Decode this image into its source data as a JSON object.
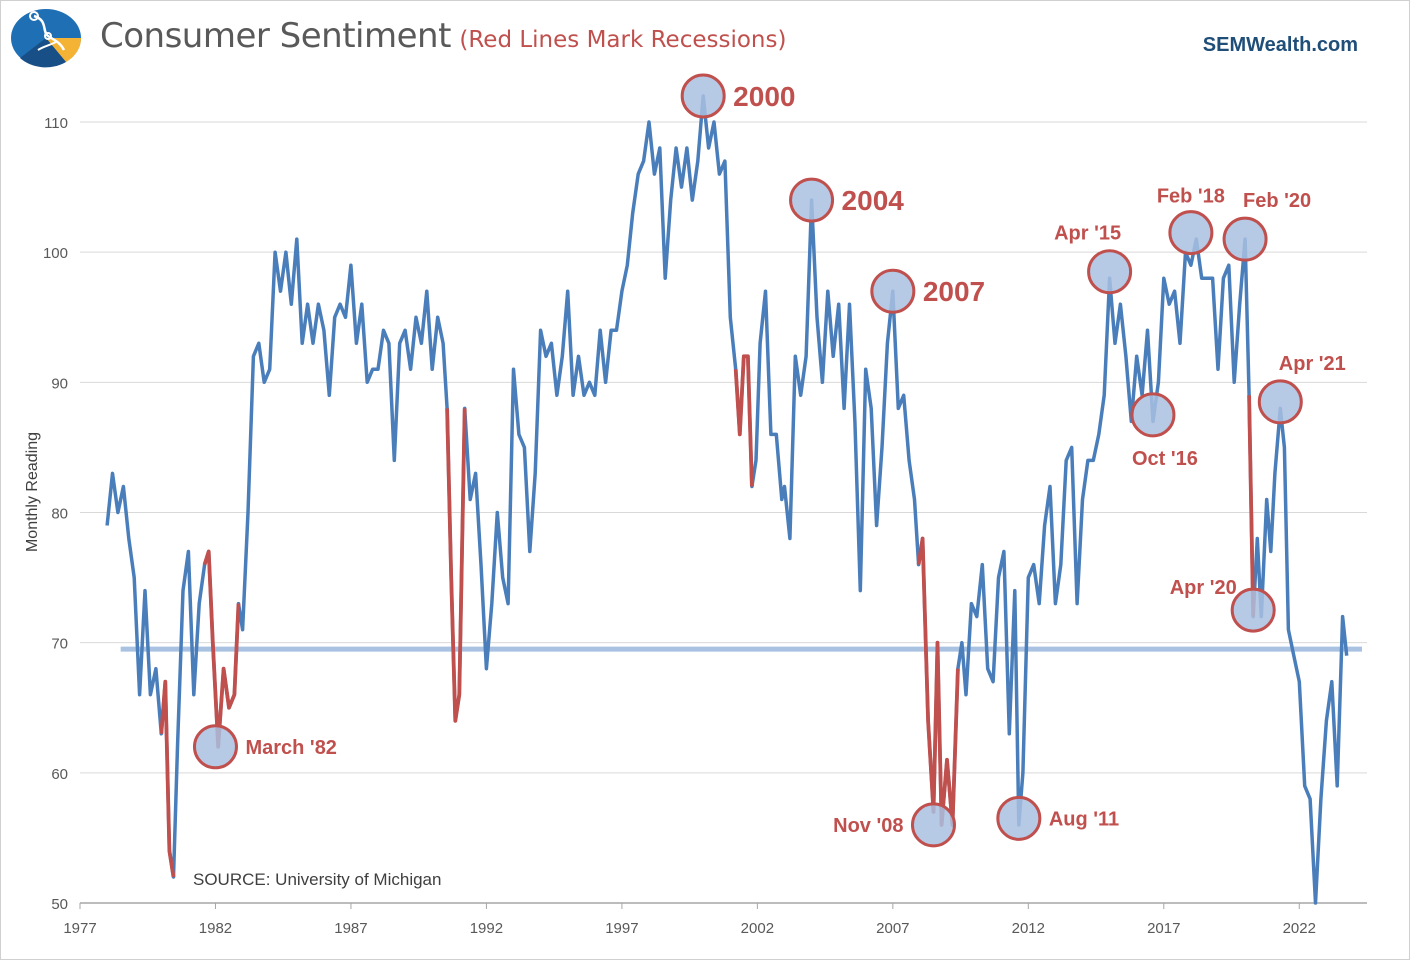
{
  "header": {
    "title": "Consumer Sentiment",
    "subtitle": "(Red Lines Mark Recessions)",
    "brand": "SEMWealth.com"
  },
  "colors": {
    "series": "#4a7ebb",
    "recession": "#c0504d",
    "average_line": "#a9c2e2",
    "marker_fill": "#a9bfe0",
    "grid": "#d9d9d9",
    "axis_text": "#595959"
  },
  "chart_data": {
    "type": "line",
    "title": "Consumer Sentiment",
    "subtitle": "(Red Lines Mark Recessions)",
    "ylabel": "Monthly Reading",
    "xlabel": "",
    "source": "SOURCE: University of Michigan",
    "ylim": [
      50,
      110
    ],
    "xlim": [
      1977,
      2024.5
    ],
    "yticks": [
      50,
      60,
      70,
      80,
      90,
      100,
      110
    ],
    "xticks": [
      "1977",
      "1982",
      "1987",
      "1992",
      "1997",
      "2002",
      "2007",
      "2012",
      "2017",
      "2022"
    ],
    "grid": "horizontal",
    "average": 69.5,
    "recessions": [
      [
        1980.0,
        1980.5
      ],
      [
        1981.5,
        1982.9
      ],
      [
        1990.5,
        1991.2
      ],
      [
        2001.2,
        2001.9
      ],
      [
        2007.9,
        2009.5
      ],
      [
        2020.1,
        2020.4
      ]
    ],
    "series": [
      {
        "values": [
          [
            1978.0,
            79
          ],
          [
            1978.2,
            83
          ],
          [
            1978.4,
            80
          ],
          [
            1978.6,
            82
          ],
          [
            1978.8,
            78
          ],
          [
            1979.0,
            75
          ],
          [
            1979.2,
            66
          ],
          [
            1979.4,
            74
          ],
          [
            1979.6,
            66
          ],
          [
            1979.8,
            68
          ],
          [
            1980.0,
            63
          ],
          [
            1980.15,
            67
          ],
          [
            1980.3,
            54
          ],
          [
            1980.45,
            52
          ],
          [
            1980.6,
            62
          ],
          [
            1980.8,
            74
          ],
          [
            1981.0,
            77
          ],
          [
            1981.2,
            66
          ],
          [
            1981.4,
            73
          ],
          [
            1981.6,
            76
          ],
          [
            1981.75,
            77
          ],
          [
            1981.9,
            70
          ],
          [
            1982.1,
            62
          ],
          [
            1982.3,
            68
          ],
          [
            1982.5,
            65
          ],
          [
            1982.7,
            66
          ],
          [
            1982.85,
            73
          ],
          [
            1983.0,
            71
          ],
          [
            1983.2,
            80
          ],
          [
            1983.4,
            92
          ],
          [
            1983.6,
            93
          ],
          [
            1983.8,
            90
          ],
          [
            1984.0,
            91
          ],
          [
            1984.2,
            100
          ],
          [
            1984.4,
            97
          ],
          [
            1984.6,
            100
          ],
          [
            1984.8,
            96
          ],
          [
            1985.0,
            101
          ],
          [
            1985.2,
            93
          ],
          [
            1985.4,
            96
          ],
          [
            1985.6,
            93
          ],
          [
            1985.8,
            96
          ],
          [
            1986.0,
            94
          ],
          [
            1986.2,
            89
          ],
          [
            1986.4,
            95
          ],
          [
            1986.6,
            96
          ],
          [
            1986.8,
            95
          ],
          [
            1987.0,
            99
          ],
          [
            1987.2,
            93
          ],
          [
            1987.4,
            96
          ],
          [
            1987.6,
            90
          ],
          [
            1987.8,
            91
          ],
          [
            1988.0,
            91
          ],
          [
            1988.2,
            94
          ],
          [
            1988.4,
            93
          ],
          [
            1988.6,
            84
          ],
          [
            1988.8,
            93
          ],
          [
            1989.0,
            94
          ],
          [
            1989.2,
            91
          ],
          [
            1989.4,
            95
          ],
          [
            1989.6,
            93
          ],
          [
            1989.8,
            97
          ],
          [
            1990.0,
            91
          ],
          [
            1990.2,
            95
          ],
          [
            1990.4,
            93
          ],
          [
            1990.55,
            88
          ],
          [
            1990.7,
            75
          ],
          [
            1990.85,
            64
          ],
          [
            1991.0,
            66
          ],
          [
            1991.2,
            88
          ],
          [
            1991.4,
            81
          ],
          [
            1991.6,
            83
          ],
          [
            1991.8,
            76
          ],
          [
            1992.0,
            68
          ],
          [
            1992.2,
            73
          ],
          [
            1992.4,
            80
          ],
          [
            1992.6,
            75
          ],
          [
            1992.8,
            73
          ],
          [
            1993.0,
            91
          ],
          [
            1993.2,
            86
          ],
          [
            1993.4,
            85
          ],
          [
            1993.6,
            77
          ],
          [
            1993.8,
            83
          ],
          [
            1994.0,
            94
          ],
          [
            1994.2,
            92
          ],
          [
            1994.4,
            93
          ],
          [
            1994.6,
            89
          ],
          [
            1994.8,
            92
          ],
          [
            1995.0,
            97
          ],
          [
            1995.2,
            89
          ],
          [
            1995.4,
            92
          ],
          [
            1995.6,
            89
          ],
          [
            1995.8,
            90
          ],
          [
            1996.0,
            89
          ],
          [
            1996.2,
            94
          ],
          [
            1996.4,
            90
          ],
          [
            1996.6,
            94
          ],
          [
            1996.8,
            94
          ],
          [
            1997.0,
            97
          ],
          [
            1997.2,
            99
          ],
          [
            1997.4,
            103
          ],
          [
            1997.6,
            106
          ],
          [
            1997.8,
            107
          ],
          [
            1998.0,
            110
          ],
          [
            1998.2,
            106
          ],
          [
            1998.4,
            108
          ],
          [
            1998.6,
            98
          ],
          [
            1998.8,
            104
          ],
          [
            1999.0,
            108
          ],
          [
            1999.2,
            105
          ],
          [
            1999.4,
            108
          ],
          [
            1999.6,
            104
          ],
          [
            1999.8,
            107
          ],
          [
            2000.0,
            112
          ],
          [
            2000.2,
            108
          ],
          [
            2000.4,
            110
          ],
          [
            2000.6,
            106
          ],
          [
            2000.8,
            107
          ],
          [
            2001.0,
            95
          ],
          [
            2001.2,
            91
          ],
          [
            2001.35,
            86
          ],
          [
            2001.5,
            92
          ],
          [
            2001.65,
            92
          ],
          [
            2001.8,
            82
          ],
          [
            2001.95,
            84
          ],
          [
            2002.1,
            93
          ],
          [
            2002.3,
            97
          ],
          [
            2002.5,
            86
          ],
          [
            2002.7,
            86
          ],
          [
            2002.9,
            81
          ],
          [
            2003.0,
            82
          ],
          [
            2003.2,
            78
          ],
          [
            2003.4,
            92
          ],
          [
            2003.6,
            89
          ],
          [
            2003.8,
            92
          ],
          [
            2004.0,
            104
          ],
          [
            2004.2,
            95
          ],
          [
            2004.4,
            90
          ],
          [
            2004.6,
            97
          ],
          [
            2004.8,
            92
          ],
          [
            2005.0,
            96
          ],
          [
            2005.2,
            88
          ],
          [
            2005.4,
            96
          ],
          [
            2005.6,
            87
          ],
          [
            2005.8,
            74
          ],
          [
            2006.0,
            91
          ],
          [
            2006.2,
            88
          ],
          [
            2006.4,
            79
          ],
          [
            2006.6,
            85
          ],
          [
            2006.8,
            93
          ],
          [
            2007.0,
            97
          ],
          [
            2007.2,
            88
          ],
          [
            2007.4,
            89
          ],
          [
            2007.6,
            84
          ],
          [
            2007.8,
            81
          ],
          [
            2007.95,
            76
          ],
          [
            2008.1,
            78
          ],
          [
            2008.3,
            64
          ],
          [
            2008.5,
            57
          ],
          [
            2008.65,
            70
          ],
          [
            2008.8,
            56
          ],
          [
            2009.0,
            61
          ],
          [
            2009.2,
            56
          ],
          [
            2009.4,
            68
          ],
          [
            2009.55,
            70
          ],
          [
            2009.7,
            66
          ],
          [
            2009.9,
            73
          ],
          [
            2010.1,
            72
          ],
          [
            2010.3,
            76
          ],
          [
            2010.5,
            68
          ],
          [
            2010.7,
            67
          ],
          [
            2010.9,
            75
          ],
          [
            2011.1,
            77
          ],
          [
            2011.3,
            63
          ],
          [
            2011.5,
            74
          ],
          [
            2011.65,
            56
          ],
          [
            2011.8,
            60
          ],
          [
            2012.0,
            75
          ],
          [
            2012.2,
            76
          ],
          [
            2012.4,
            73
          ],
          [
            2012.6,
            79
          ],
          [
            2012.8,
            82
          ],
          [
            2013.0,
            73
          ],
          [
            2013.2,
            76
          ],
          [
            2013.4,
            84
          ],
          [
            2013.6,
            85
          ],
          [
            2013.8,
            73
          ],
          [
            2014.0,
            81
          ],
          [
            2014.2,
            84
          ],
          [
            2014.4,
            84
          ],
          [
            2014.6,
            86
          ],
          [
            2014.8,
            89
          ],
          [
            2015.0,
            98
          ],
          [
            2015.2,
            93
          ],
          [
            2015.4,
            96
          ],
          [
            2015.6,
            92
          ],
          [
            2015.8,
            87
          ],
          [
            2016.0,
            92
          ],
          [
            2016.2,
            89
          ],
          [
            2016.4,
            94
          ],
          [
            2016.6,
            87
          ],
          [
            2016.8,
            90
          ],
          [
            2017.0,
            98
          ],
          [
            2017.2,
            96
          ],
          [
            2017.4,
            97
          ],
          [
            2017.6,
            93
          ],
          [
            2017.8,
            100
          ],
          [
            2018.0,
            99
          ],
          [
            2018.2,
            101
          ],
          [
            2018.4,
            98
          ],
          [
            2018.6,
            98
          ],
          [
            2018.8,
            98
          ],
          [
            2019.0,
            91
          ],
          [
            2019.2,
            98
          ],
          [
            2019.4,
            99
          ],
          [
            2019.6,
            90
          ],
          [
            2019.8,
            96
          ],
          [
            2020.0,
            101
          ],
          [
            2020.15,
            89
          ],
          [
            2020.3,
            72
          ],
          [
            2020.45,
            78
          ],
          [
            2020.6,
            72
          ],
          [
            2020.8,
            81
          ],
          [
            2020.95,
            77
          ],
          [
            2021.1,
            83
          ],
          [
            2021.3,
            88
          ],
          [
            2021.45,
            85
          ],
          [
            2021.6,
            71
          ],
          [
            2021.8,
            69
          ],
          [
            2022.0,
            67
          ],
          [
            2022.2,
            59
          ],
          [
            2022.4,
            58
          ],
          [
            2022.6,
            50
          ],
          [
            2022.8,
            58
          ],
          [
            2023.0,
            64
          ],
          [
            2023.2,
            67
          ],
          [
            2023.4,
            59
          ],
          [
            2023.6,
            72
          ],
          [
            2023.75,
            69
          ]
        ]
      }
    ],
    "annotations": [
      {
        "label": "March '82",
        "x": 1982.0,
        "y": 62,
        "side": "right",
        "size": "normal"
      },
      {
        "label": "2000",
        "x": 2000.0,
        "y": 112,
        "side": "right",
        "size": "large"
      },
      {
        "label": "2004",
        "x": 2004.0,
        "y": 104,
        "side": "right",
        "size": "large"
      },
      {
        "label": "2007",
        "x": 2007.0,
        "y": 97,
        "side": "right",
        "size": "large"
      },
      {
        "label": "Nov '08",
        "x": 2008.5,
        "y": 56,
        "side": "left",
        "size": "normal"
      },
      {
        "label": "Aug '11",
        "x": 2011.65,
        "y": 56.5,
        "side": "right",
        "size": "normal"
      },
      {
        "label": "Apr '15",
        "x": 2015.0,
        "y": 98.5,
        "side": "above-left",
        "size": "normal"
      },
      {
        "label": "Oct '16",
        "x": 2016.6,
        "y": 87.5,
        "side": "below",
        "size": "normal"
      },
      {
        "label": "Feb '18",
        "x": 2018.0,
        "y": 101.5,
        "side": "above",
        "size": "normal"
      },
      {
        "label": "Feb '20",
        "x": 2020.0,
        "y": 101,
        "side": "above-right",
        "size": "normal"
      },
      {
        "label": "Apr '21",
        "x": 2021.3,
        "y": 88.5,
        "side": "above-right",
        "size": "normal"
      },
      {
        "label": "Apr '20",
        "x": 2020.3,
        "y": 72.5,
        "side": "above-left",
        "size": "normal"
      }
    ]
  }
}
